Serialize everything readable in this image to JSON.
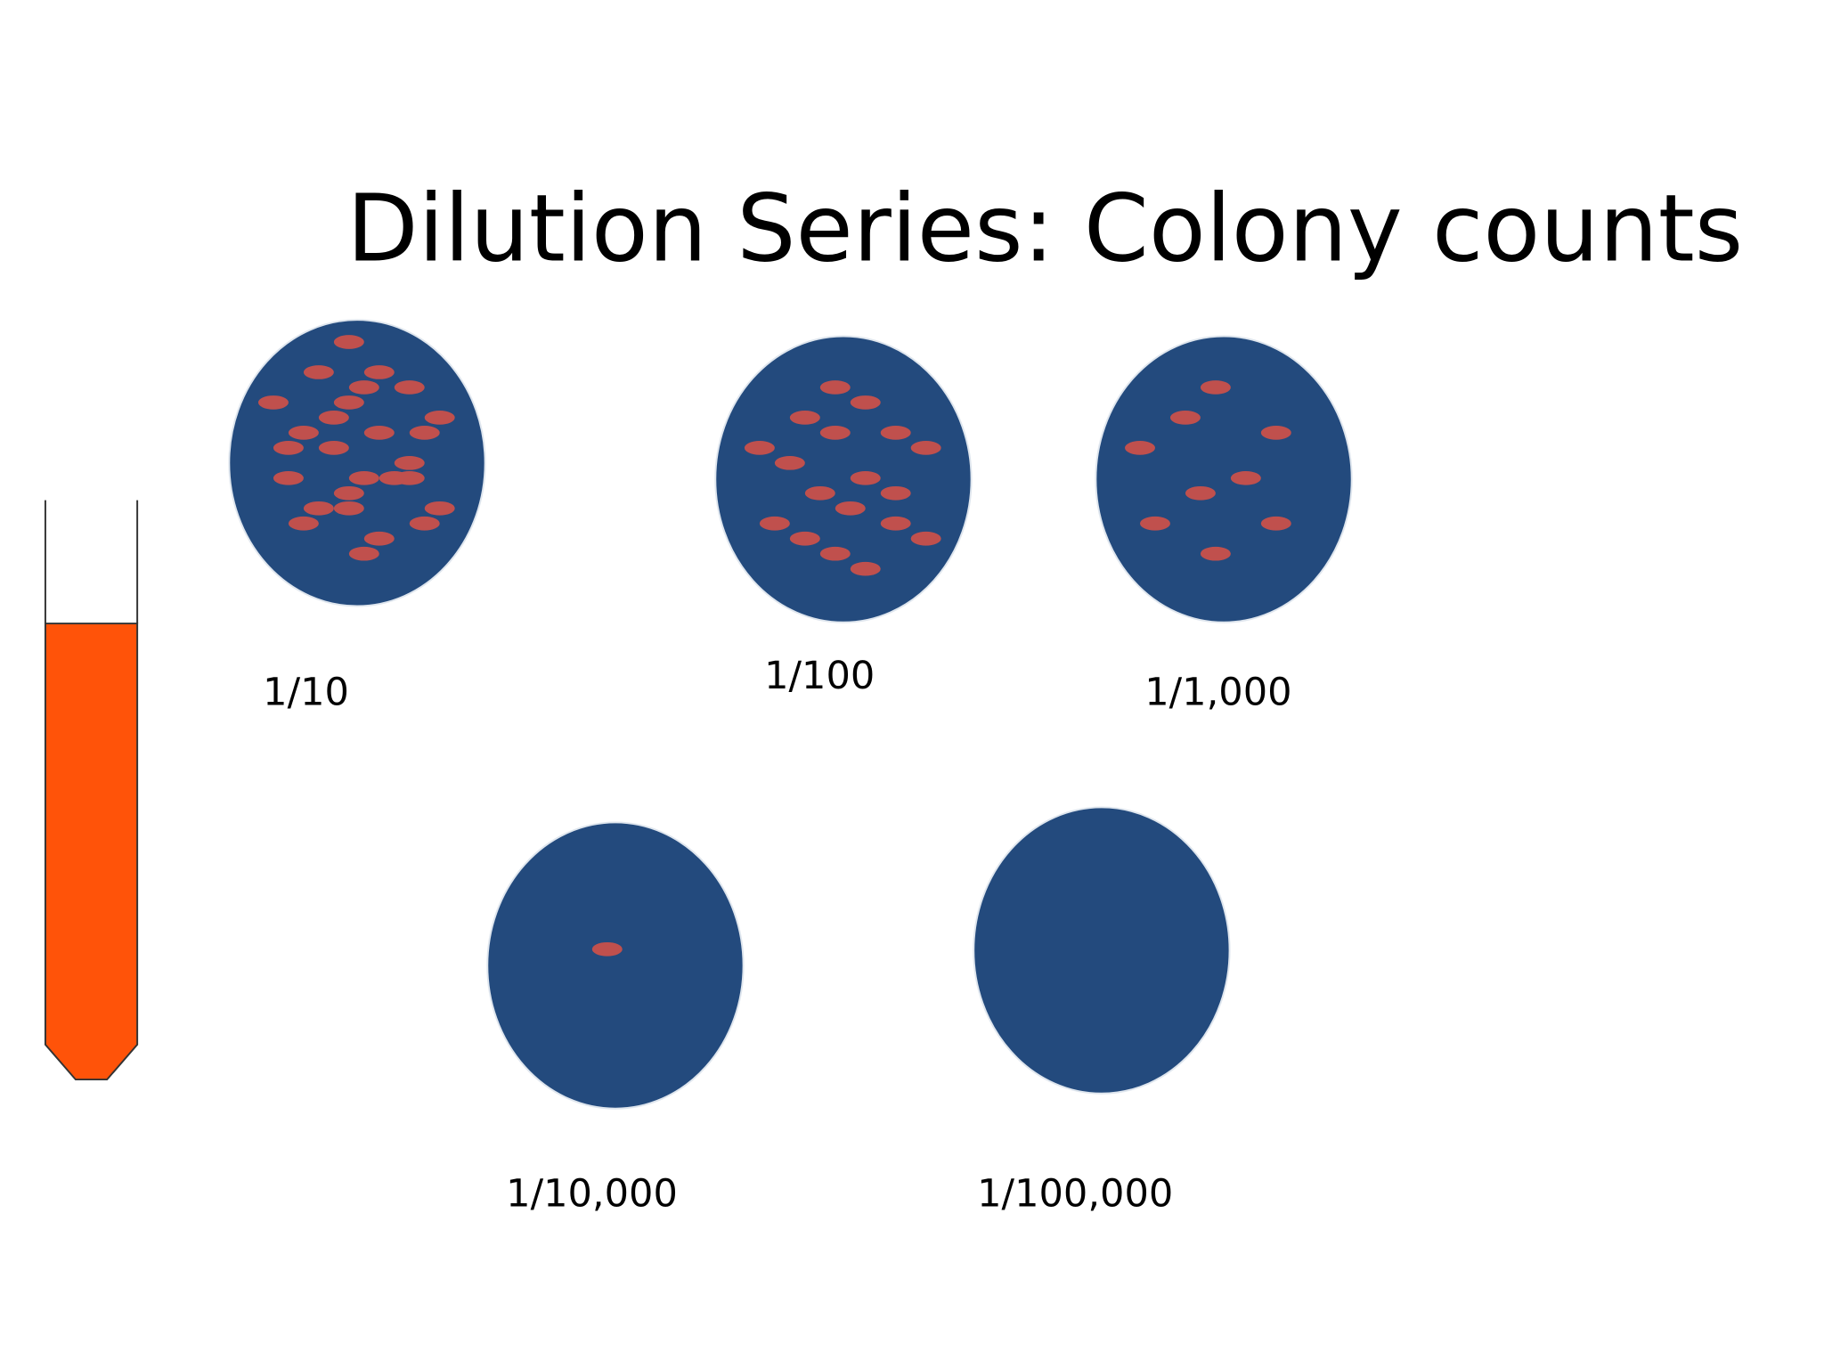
{
  "title": "Dilution Series: Colony counts",
  "plates": [
    {
      "label": "1/10"
    },
    {
      "label": "1/100"
    },
    {
      "label": "1/1,000"
    },
    {
      "label": "1/10,000"
    },
    {
      "label": "1/100,000"
    }
  ]
}
